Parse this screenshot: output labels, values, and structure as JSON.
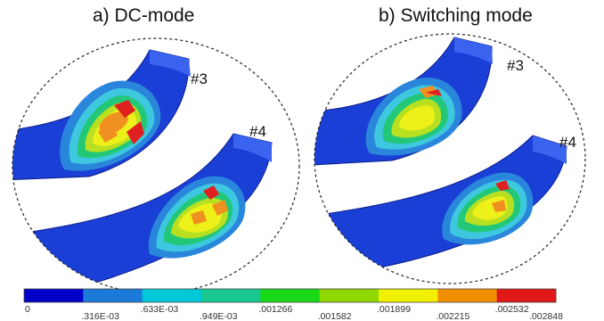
{
  "panels": [
    {
      "title": "a) DC-mode",
      "labels": [
        "#3",
        "#4"
      ]
    },
    {
      "title": "b)  Switching mode",
      "labels": [
        "#3",
        "#4"
      ]
    }
  ],
  "colorbar": {
    "colors": [
      "#0000c8",
      "#1c7ad8",
      "#00c8d8",
      "#18c890",
      "#18d818",
      "#90d800",
      "#f0f000",
      "#f09000",
      "#e01818"
    ],
    "ticks": [
      "0",
      ".316E-03",
      ".633E-03",
      ".949E-03",
      ".001266",
      ".001582",
      ".001899",
      ".002215",
      ".002532",
      ".002848"
    ]
  },
  "palette": {
    "blue": "#1a3fd6",
    "edge": "#0c1f8a"
  }
}
